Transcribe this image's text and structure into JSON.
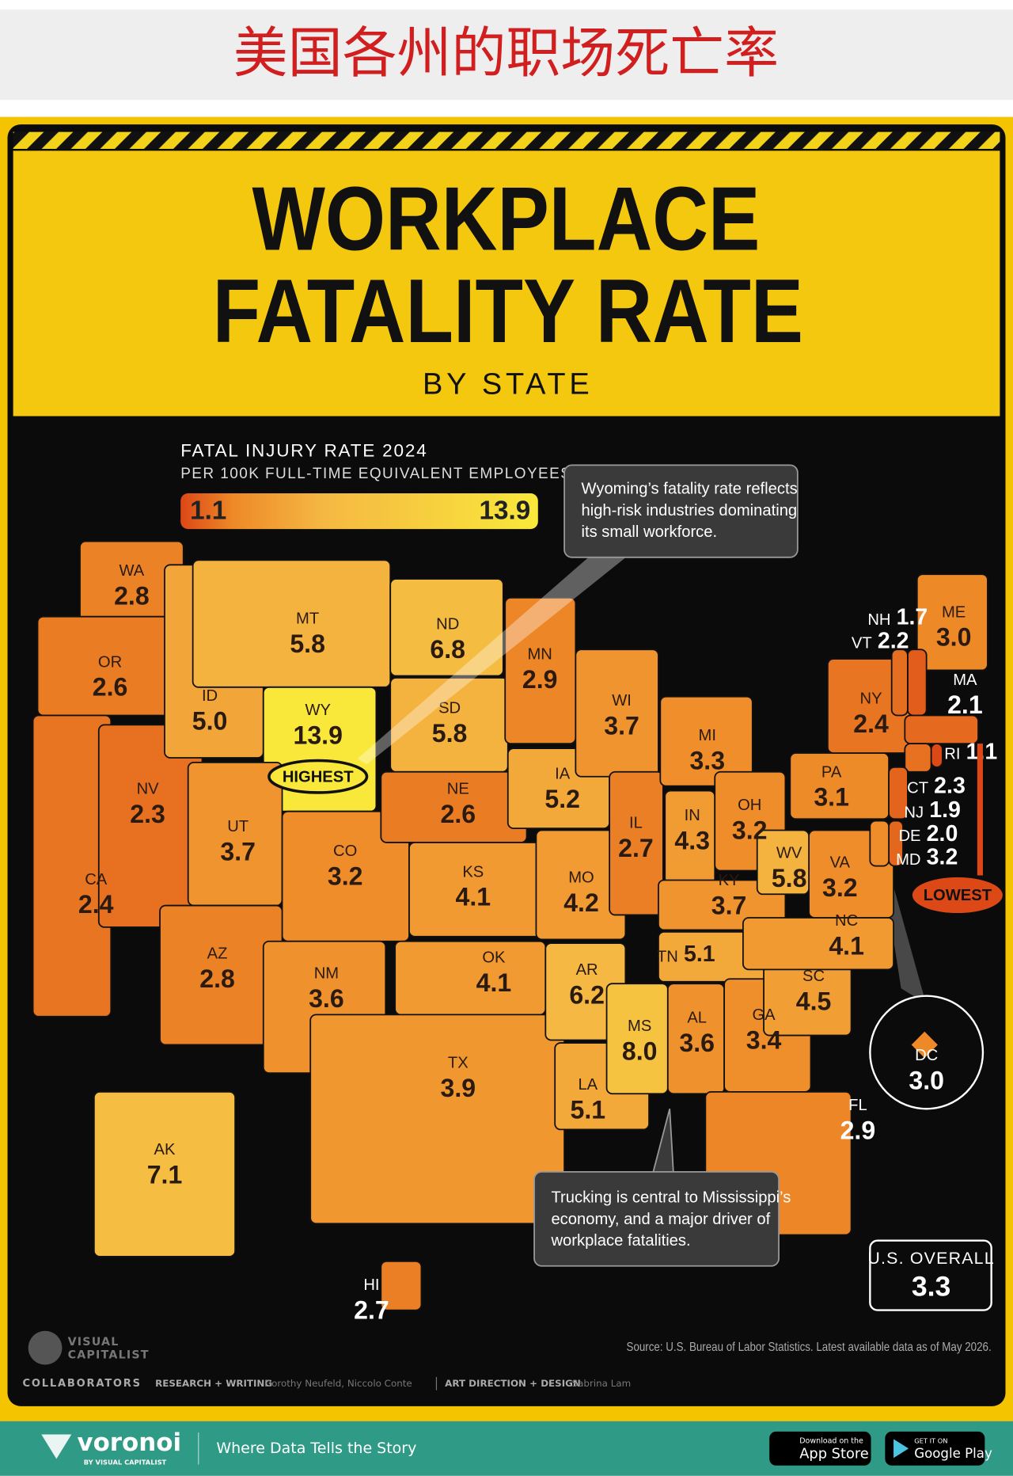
{
  "header": {
    "title": "美国各州的职场死亡率"
  },
  "infographic": {
    "title_line1": "WORKPLACE",
    "title_line2": "FATALITY RATE",
    "subtitle": "BY STATE",
    "legend": {
      "title": "FATAL INJURY RATE 2024",
      "subtitle": "PER 100K FULL-TIME EQUIVALENT EMPLOYEES",
      "min": 1.1,
      "max": 13.9,
      "colors": [
        "#dc4816",
        "#ee8a28",
        "#f5b843",
        "#f9e83a"
      ]
    },
    "states": [
      {
        "abbr": "WA",
        "value": 2.8
      },
      {
        "abbr": "OR",
        "value": 2.6
      },
      {
        "abbr": "CA",
        "value": 2.4
      },
      {
        "abbr": "NV",
        "value": 2.3
      },
      {
        "abbr": "ID",
        "value": 5.0,
        "label": "5.0"
      },
      {
        "abbr": "MT",
        "value": 5.8
      },
      {
        "abbr": "WY",
        "value": 13.9
      },
      {
        "abbr": "UT",
        "value": 3.7
      },
      {
        "abbr": "CO",
        "value": 3.2
      },
      {
        "abbr": "AZ",
        "value": 2.8
      },
      {
        "abbr": "NM",
        "value": 3.6
      },
      {
        "abbr": "ND",
        "value": 6.8
      },
      {
        "abbr": "SD",
        "value": 5.8
      },
      {
        "abbr": "NE",
        "value": 2.6
      },
      {
        "abbr": "KS",
        "value": 4.1
      },
      {
        "abbr": "OK",
        "value": 4.1
      },
      {
        "abbr": "TX",
        "value": 3.9
      },
      {
        "abbr": "MN",
        "value": 2.9
      },
      {
        "abbr": "IA",
        "value": 5.2
      },
      {
        "abbr": "MO",
        "value": 4.2
      },
      {
        "abbr": "AR",
        "value": 6.2
      },
      {
        "abbr": "LA",
        "value": 5.1
      },
      {
        "abbr": "WI",
        "value": 3.7
      },
      {
        "abbr": "IL",
        "value": 2.7
      },
      {
        "abbr": "MI",
        "value": 3.3
      },
      {
        "abbr": "IN",
        "value": 4.3
      },
      {
        "abbr": "OH",
        "value": 3.2
      },
      {
        "abbr": "KY",
        "value": 3.7
      },
      {
        "abbr": "TN",
        "value": 5.1
      },
      {
        "abbr": "MS",
        "value": 8.0,
        "label": "8.0"
      },
      {
        "abbr": "AL",
        "value": 3.6
      },
      {
        "abbr": "GA",
        "value": 3.4
      },
      {
        "abbr": "FL",
        "value": 2.9
      },
      {
        "abbr": "SC",
        "value": 4.5
      },
      {
        "abbr": "NC",
        "value": 4.1
      },
      {
        "abbr": "VA",
        "value": 3.2
      },
      {
        "abbr": "WV",
        "value": 5.8
      },
      {
        "abbr": "PA",
        "value": 3.1
      },
      {
        "abbr": "NY",
        "value": 2.4
      },
      {
        "abbr": "ME",
        "value": 3.0,
        "label": "3.0"
      },
      {
        "abbr": "NH",
        "value": 1.7
      },
      {
        "abbr": "VT",
        "value": 2.2
      },
      {
        "abbr": "MA",
        "value": 2.1
      },
      {
        "abbr": "RI",
        "value": 1.1
      },
      {
        "abbr": "CT",
        "value": 2.3
      },
      {
        "abbr": "NJ",
        "value": 1.9
      },
      {
        "abbr": "DE",
        "value": 2.0,
        "label": "2.0"
      },
      {
        "abbr": "MD",
        "value": 3.2
      },
      {
        "abbr": "DC",
        "value": 3.0,
        "label": "3.0"
      },
      {
        "abbr": "AK",
        "value": 7.1
      },
      {
        "abbr": "HI",
        "value": 2.7
      }
    ],
    "highest_badge": "HIGHEST",
    "lowest_badge": "LOWEST",
    "annotations": [
      [
        "Wyoming’s fatality rate reflects",
        "high-risk industries dominating",
        "its small workforce."
      ],
      [
        "Trucking is central to Mississippi’s",
        "economy, and a major driver of",
        "workplace fatalities."
      ]
    ],
    "us_overall": {
      "label": "U.S. OVERALL",
      "value": 3.3
    },
    "source": "Source: U.S. Bureau of Labor Statistics. Latest available data as of May 2026.",
    "brand": [
      "VISUAL",
      "CAPITALIST"
    ],
    "credits": {
      "label": "COLLABORATORS",
      "research_label": "RESEARCH + WRITING",
      "research_names": "Dorothy Neufeld, Niccolo Conte",
      "design_label": "ART DIRECTION + DESIGN",
      "design_names": "Sabrina Lam"
    }
  },
  "footer": {
    "brand": "voronoi",
    "brand_sub": "BY VISUAL CAPITALIST",
    "tagline": "Where Data Tells the Story",
    "app_store": {
      "small": "Download on the",
      "big": "App Store"
    },
    "google_play": {
      "small": "GET IT ON",
      "big": "Google Play"
    }
  }
}
